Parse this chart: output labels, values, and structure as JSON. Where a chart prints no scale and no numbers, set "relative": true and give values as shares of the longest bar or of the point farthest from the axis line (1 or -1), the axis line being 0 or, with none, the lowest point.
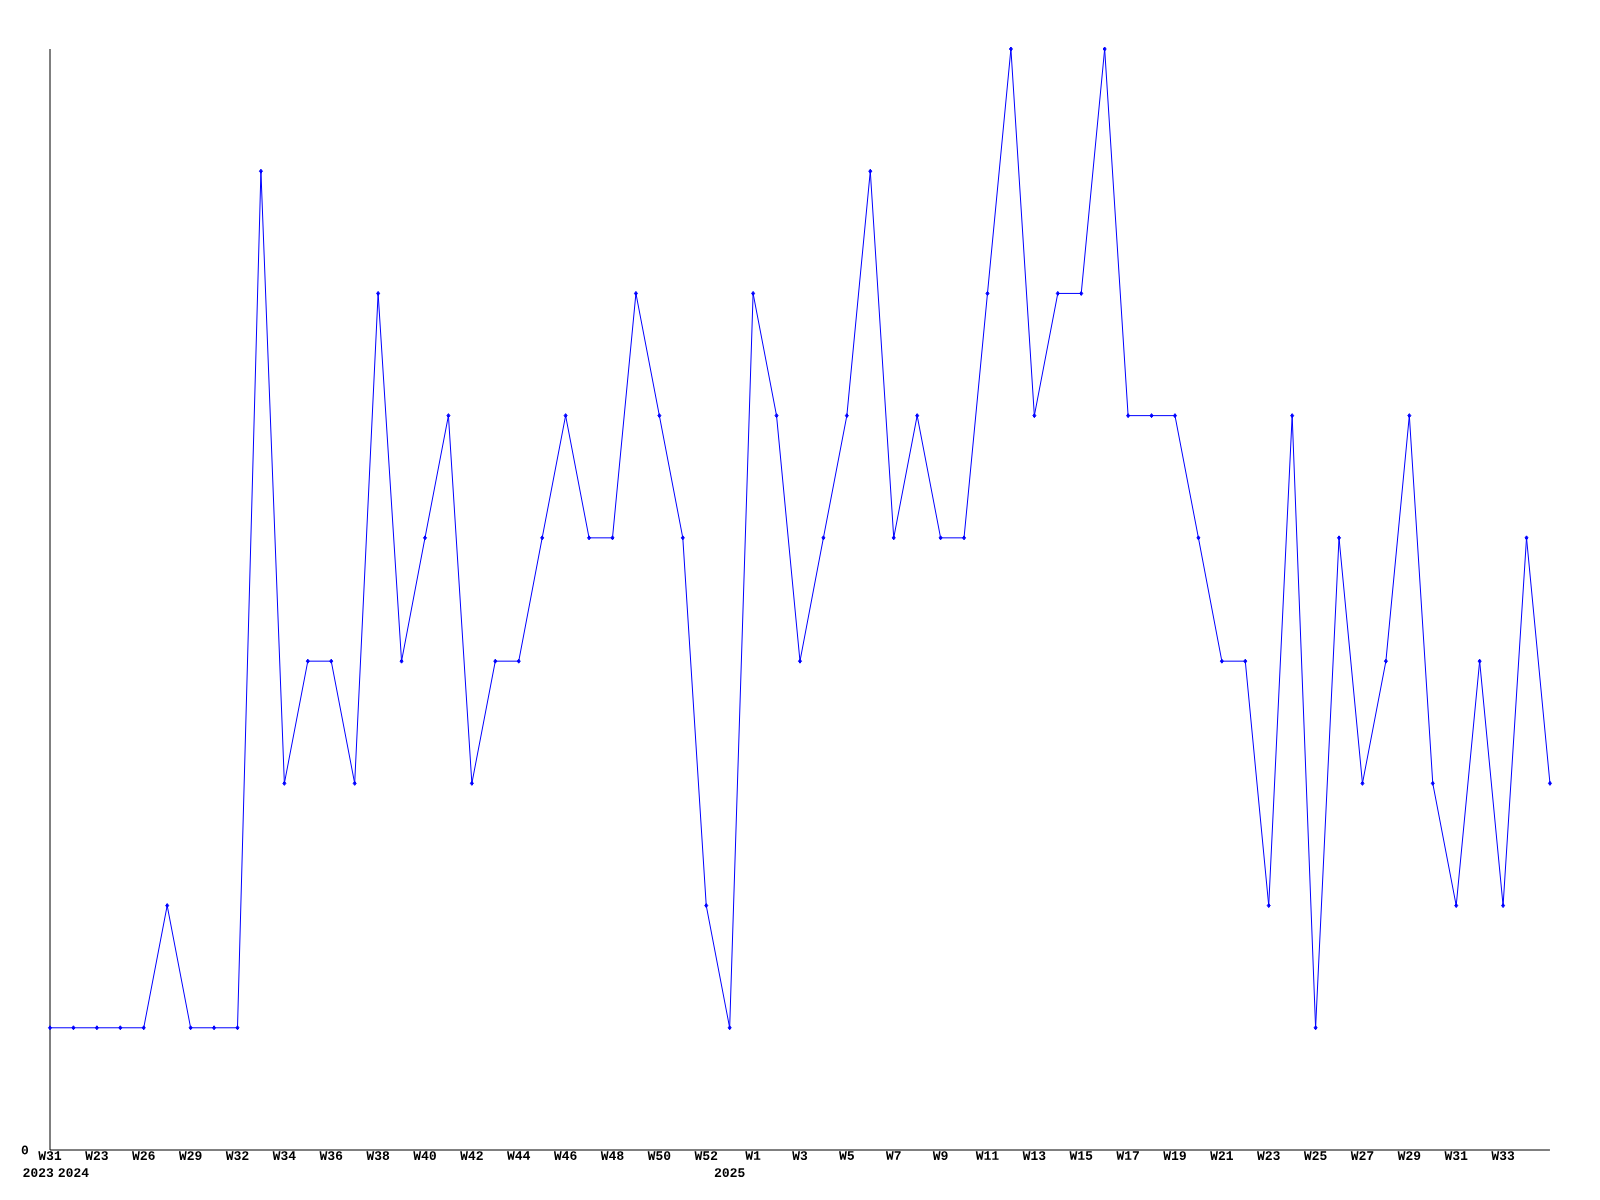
{
  "chart_data": {
    "type": "line",
    "relative": true,
    "color": "#0000ff",
    "marker": "diamond",
    "line_style": "solid",
    "categories": [
      "W31",
      "2024",
      "W23",
      null,
      "W26",
      null,
      "W29",
      null,
      "W32",
      null,
      "W34",
      null,
      "W36",
      null,
      "W38",
      null,
      "W40",
      null,
      "W42",
      null,
      "W44",
      null,
      "W46",
      null,
      "W48",
      null,
      "W50",
      null,
      "W52",
      "2025",
      "W1",
      null,
      "W3",
      null,
      "W5",
      null,
      "W7",
      null,
      "W9",
      null,
      "W11",
      null,
      "W13",
      null,
      "W15",
      null,
      "W17",
      null,
      "W19",
      null,
      "W21",
      null,
      "W23",
      null,
      "W25",
      null,
      "W27",
      null,
      "W29",
      null,
      "W31",
      null,
      "W33",
      null,
      null
    ],
    "values": [
      0.111,
      0.111,
      0.111,
      0.111,
      0.111,
      0.222,
      0.111,
      0.111,
      0.111,
      0.889,
      0.333,
      0.444,
      0.444,
      0.333,
      0.778,
      0.444,
      0.556,
      0.667,
      0.333,
      0.444,
      0.444,
      0.556,
      0.667,
      0.556,
      0.556,
      0.778,
      0.667,
      0.556,
      0.222,
      0.111,
      0.778,
      0.667,
      0.444,
      0.556,
      0.667,
      0.889,
      0.556,
      0.667,
      0.556,
      0.556,
      0.778,
      1,
      0.667,
      0.778,
      0.778,
      1,
      0.667,
      0.667,
      0.667,
      0.556,
      0.444,
      0.444,
      0.222,
      0.667,
      0.111,
      0.556,
      0.333,
      0.444,
      0.667,
      0.333,
      0.222,
      0.444,
      0.222,
      0.556,
      0.333
    ],
    "annotations": [
      "2023",
      "0"
    ]
  }
}
